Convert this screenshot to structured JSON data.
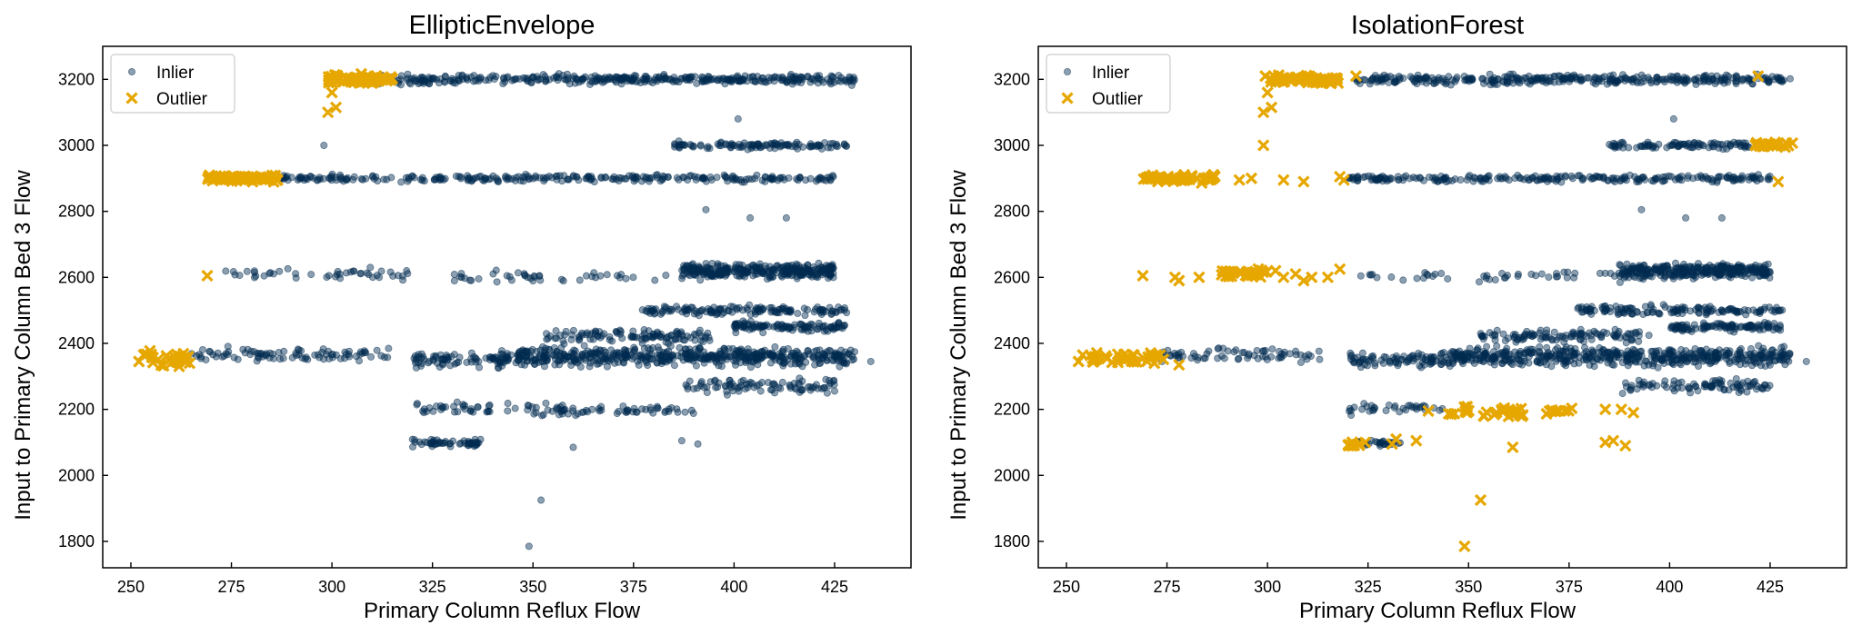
{
  "colors": {
    "inlier": "#002b50",
    "outlier": "#e6a700",
    "axis": "#000000",
    "background": "#ffffff"
  },
  "chart_data": [
    {
      "type": "scatter",
      "title": "EllipticEnvelope",
      "xlabel": "Primary Column Reflux Flow",
      "ylabel": "Input to Primary Column Bed 3 Flow",
      "xlim": [
        243,
        444
      ],
      "ylim": [
        1720,
        3300
      ],
      "xticks": [
        250,
        275,
        300,
        325,
        350,
        375,
        400,
        425
      ],
      "yticks": [
        1800,
        2000,
        2200,
        2400,
        2600,
        2800,
        3000,
        3200
      ],
      "grid": false,
      "legend_position": "top-left",
      "series": [
        {
          "name": "Inlier",
          "marker": "circle",
          "clusters": [
            {
              "x": [
                310,
                430
              ],
              "y": [
                3180,
                3220
              ],
              "n": 380
            },
            {
              "x": [
                385,
                428
              ],
              "y": [
                2985,
                3015
              ],
              "n": 110
            },
            {
              "x": [
                287,
                425
              ],
              "y": [
                2885,
                2915
              ],
              "n": 280
            },
            {
              "x": [
                273,
                320
              ],
              "y": [
                2585,
                2635
              ],
              "n": 45
            },
            {
              "x": [
                330,
                388
              ],
              "y": [
                2580,
                2625
              ],
              "n": 45
            },
            {
              "x": [
                387,
                425
              ],
              "y": [
                2590,
                2650
              ],
              "n": 320
            },
            {
              "x": [
                377,
                428
              ],
              "y": [
                2480,
                2520
              ],
              "n": 140
            },
            {
              "x": [
                400,
                428
              ],
              "y": [
                2430,
                2470
              ],
              "n": 110
            },
            {
              "x": [
                265,
                315
              ],
              "y": [
                2335,
                2395
              ],
              "n": 90
            },
            {
              "x": [
                320,
                345
              ],
              "y": [
                2320,
                2380
              ],
              "n": 90
            },
            {
              "x": [
                345,
                430
              ],
              "y": [
                2320,
                2400
              ],
              "n": 520
            },
            {
              "x": [
                353,
                395
              ],
              "y": [
                2395,
                2450
              ],
              "n": 110
            },
            {
              "x": [
                320,
                360
              ],
              "y": [
                2170,
                2230
              ],
              "n": 55
            },
            {
              "x": [
                355,
                390
              ],
              "y": [
                2180,
                2215
              ],
              "n": 50
            },
            {
              "x": [
                387,
                425
              ],
              "y": [
                2240,
                2300
              ],
              "n": 90
            },
            {
              "x": [
                320,
                337
              ],
              "y": [
                2085,
                2115
              ],
              "n": 55
            }
          ],
          "points": [
            {
              "x": 298,
              "y": 3000
            },
            {
              "x": 401,
              "y": 3080
            },
            {
              "x": 393,
              "y": 2805
            },
            {
              "x": 404,
              "y": 2780
            },
            {
              "x": 413,
              "y": 2780
            },
            {
              "x": 349,
              "y": 1785
            },
            {
              "x": 352,
              "y": 1925
            },
            {
              "x": 360,
              "y": 2085
            },
            {
              "x": 387,
              "y": 2105
            },
            {
              "x": 391,
              "y": 2095
            },
            {
              "x": 434,
              "y": 2345
            },
            {
              "x": 426,
              "y": 2460
            }
          ]
        },
        {
          "name": "Outlier",
          "marker": "x",
          "clusters": [
            {
              "x": [
                299,
                315
              ],
              "y": [
                3180,
                3220
              ],
              "n": 60
            },
            {
              "x": [
                269,
                287
              ],
              "y": [
                2885,
                2915
              ],
              "n": 70
            },
            {
              "x": [
                253,
                265
              ],
              "y": [
                2320,
                2385
              ],
              "n": 30
            }
          ],
          "points": [
            {
              "x": 299,
              "y": 3100
            },
            {
              "x": 301,
              "y": 3115
            },
            {
              "x": 300,
              "y": 3160
            },
            {
              "x": 269,
              "y": 2605
            },
            {
              "x": 252,
              "y": 2345
            },
            {
              "x": 262,
              "y": 2330
            }
          ]
        }
      ]
    },
    {
      "type": "scatter",
      "title": "IsolationForest",
      "xlabel": "Primary Column Reflux Flow",
      "ylabel": "Input to Primary Column Bed 3 Flow",
      "xlim": [
        243,
        444
      ],
      "ylim": [
        1720,
        3300
      ],
      "xticks": [
        250,
        275,
        300,
        325,
        350,
        375,
        400,
        425
      ],
      "yticks": [
        1800,
        2000,
        2200,
        2400,
        2600,
        2800,
        3000,
        3200
      ],
      "grid": false,
      "legend_position": "top-left",
      "series": [
        {
          "name": "Inlier",
          "marker": "circle",
          "clusters": [
            {
              "x": [
                322,
                430
              ],
              "y": [
                3180,
                3220
              ],
              "n": 340
            },
            {
              "x": [
                385,
                420
              ],
              "y": [
                2985,
                3015
              ],
              "n": 90
            },
            {
              "x": [
                320,
                425
              ],
              "y": [
                2885,
                2915
              ],
              "n": 240
            },
            {
              "x": [
                323,
                388
              ],
              "y": [
                2580,
                2625
              ],
              "n": 45
            },
            {
              "x": [
                387,
                425
              ],
              "y": [
                2590,
                2650
              ],
              "n": 320
            },
            {
              "x": [
                377,
                428
              ],
              "y": [
                2480,
                2520
              ],
              "n": 140
            },
            {
              "x": [
                400,
                428
              ],
              "y": [
                2430,
                2470
              ],
              "n": 110
            },
            {
              "x": [
                273,
                315
              ],
              "y": [
                2340,
                2395
              ],
              "n": 70
            },
            {
              "x": [
                320,
                345
              ],
              "y": [
                2320,
                2380
              ],
              "n": 90
            },
            {
              "x": [
                345,
                430
              ],
              "y": [
                2320,
                2400
              ],
              "n": 520
            },
            {
              "x": [
                353,
                395
              ],
              "y": [
                2395,
                2450
              ],
              "n": 110
            },
            {
              "x": [
                320,
                345
              ],
              "y": [
                2175,
                2225
              ],
              "n": 35
            },
            {
              "x": [
                387,
                425
              ],
              "y": [
                2240,
                2300
              ],
              "n": 90
            },
            {
              "x": [
                322,
                333
              ],
              "y": [
                2085,
                2110
              ],
              "n": 30
            }
          ],
          "points": [
            {
              "x": 401,
              "y": 3080
            },
            {
              "x": 393,
              "y": 2805
            },
            {
              "x": 404,
              "y": 2780
            },
            {
              "x": 413,
              "y": 2780
            },
            {
              "x": 434,
              "y": 2345
            },
            {
              "x": 426,
              "y": 2460
            }
          ]
        },
        {
          "name": "Outlier",
          "marker": "x",
          "clusters": [
            {
              "x": [
                299,
                318
              ],
              "y": [
                3180,
                3220
              ],
              "n": 55
            },
            {
              "x": [
                421,
                431
              ],
              "y": [
                2990,
                3015
              ],
              "n": 25
            },
            {
              "x": [
                269,
                287
              ],
              "y": [
                2885,
                2915
              ],
              "n": 55
            },
            {
              "x": [
                288,
                300
              ],
              "y": [
                2595,
                2630
              ],
              "n": 30
            },
            {
              "x": [
                253,
                275
              ],
              "y": [
                2325,
                2385
              ],
              "n": 40
            },
            {
              "x": [
                345,
                365
              ],
              "y": [
                2170,
                2215
              ],
              "n": 30
            },
            {
              "x": [
                368,
                376
              ],
              "y": [
                2185,
                2210
              ],
              "n": 10
            },
            {
              "x": [
                320,
                325
              ],
              "y": [
                2080,
                2110
              ],
              "n": 10
            }
          ],
          "points": [
            {
              "x": 299,
              "y": 3100
            },
            {
              "x": 301,
              "y": 3115
            },
            {
              "x": 300,
              "y": 3160
            },
            {
              "x": 306,
              "y": 3200
            },
            {
              "x": 310,
              "y": 3190
            },
            {
              "x": 315,
              "y": 3195
            },
            {
              "x": 322,
              "y": 3210
            },
            {
              "x": 422,
              "y": 3210
            },
            {
              "x": 299,
              "y": 3000
            },
            {
              "x": 427,
              "y": 2890
            },
            {
              "x": 293,
              "y": 2895
            },
            {
              "x": 296,
              "y": 2900
            },
            {
              "x": 304,
              "y": 2895
            },
            {
              "x": 309,
              "y": 2890
            },
            {
              "x": 318,
              "y": 2905
            },
            {
              "x": 319,
              "y": 2895
            },
            {
              "x": 269,
              "y": 2605
            },
            {
              "x": 277,
              "y": 2600
            },
            {
              "x": 278,
              "y": 2590
            },
            {
              "x": 283,
              "y": 2600
            },
            {
              "x": 302,
              "y": 2620
            },
            {
              "x": 304,
              "y": 2600
            },
            {
              "x": 307,
              "y": 2610
            },
            {
              "x": 309,
              "y": 2590
            },
            {
              "x": 311,
              "y": 2600
            },
            {
              "x": 315,
              "y": 2600
            },
            {
              "x": 318,
              "y": 2625
            },
            {
              "x": 278,
              "y": 2335
            },
            {
              "x": 253,
              "y": 2345
            },
            {
              "x": 349,
              "y": 1785
            },
            {
              "x": 353,
              "y": 1925
            },
            {
              "x": 361,
              "y": 2085
            },
            {
              "x": 331,
              "y": 2095
            },
            {
              "x": 332,
              "y": 2110
            },
            {
              "x": 337,
              "y": 2105
            },
            {
              "x": 384,
              "y": 2100
            },
            {
              "x": 386,
              "y": 2105
            },
            {
              "x": 389,
              "y": 2090
            },
            {
              "x": 384,
              "y": 2200
            },
            {
              "x": 388,
              "y": 2200
            },
            {
              "x": 391,
              "y": 2190
            },
            {
              "x": 340,
              "y": 2195
            }
          ]
        }
      ]
    }
  ]
}
